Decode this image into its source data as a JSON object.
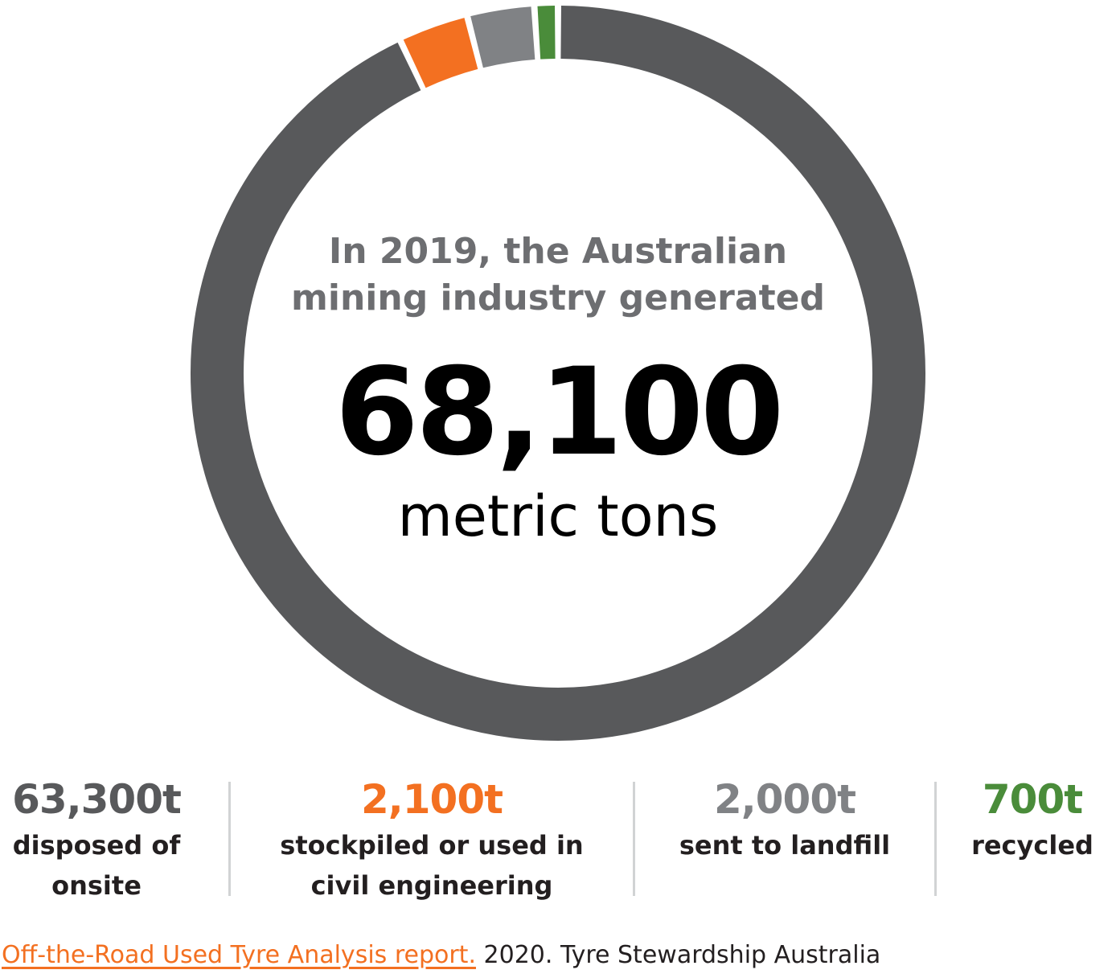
{
  "headline": {
    "line1": "In 2019, the Australian",
    "line2": "mining industry generated"
  },
  "total": {
    "value": "68,100",
    "unit": "metric tons"
  },
  "chart_data": {
    "type": "pie",
    "variant": "donut",
    "total": 68100,
    "categories": [
      "disposed of onsite",
      "stockpiled or used in civil engineering",
      "sent to landfill",
      "recycled"
    ],
    "values": [
      63300,
      2100,
      2000,
      700
    ],
    "colors": [
      "#58595b",
      "#f37021",
      "#808285",
      "#4a8c3a"
    ],
    "start": "top, clockwise"
  },
  "stats": [
    {
      "value": "63,300t",
      "label_line1": "disposed of",
      "label_line2": "onsite",
      "color": "#58595b"
    },
    {
      "value": "2,100t",
      "label_line1": "stockpiled or used in",
      "label_line2": "civil engineering",
      "color": "#f37021"
    },
    {
      "value": "2,000t",
      "label_line1": "sent to landfill",
      "label_line2": "",
      "color": "#808285"
    },
    {
      "value": "700t",
      "label_line1": "recycled",
      "label_line2": "",
      "color": "#4a8c3a"
    }
  ],
  "source": {
    "link_text": "Off-the-Road Used Tyre Analysis report.",
    "rest_text": " 2020. Tyre Stewardship Australia"
  }
}
